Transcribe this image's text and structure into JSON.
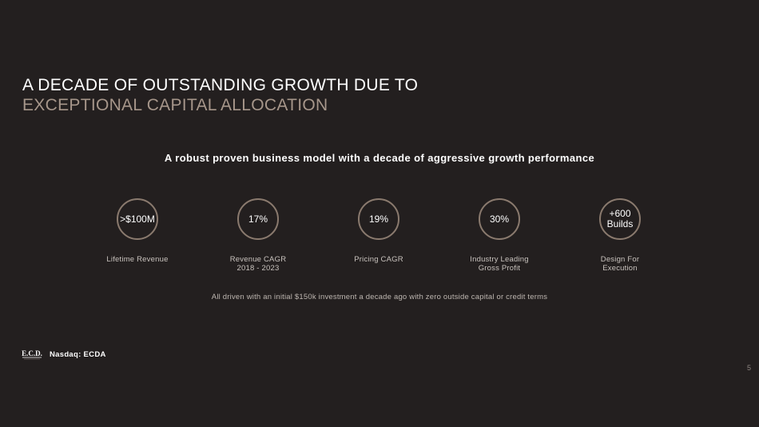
{
  "title": {
    "line1": "A DECADE OF OUTSTANDING GROWTH DUE TO",
    "line2": "EXCEPTIONAL CAPITAL ALLOCATION"
  },
  "subtitle": "A robust proven business model with a decade of aggressive growth performance",
  "stats": [
    {
      "value": ">$100M",
      "label": "Lifetime Revenue"
    },
    {
      "value": "17%",
      "label": "Revenue CAGR\n2018 - 2023"
    },
    {
      "value": "19%",
      "label": "Pricing CAGR"
    },
    {
      "value": "30%",
      "label": "Industry Leading\nGross Profit"
    },
    {
      "value": "+600\nBuilds",
      "label": "Design For\nExecution"
    }
  ],
  "footnote": "All driven with an initial $150k investment a decade ago with zero outside capital or credit terms",
  "footer": {
    "logo_text": "E.C.D.",
    "ticker": "Nasdaq: ECDA"
  },
  "page_number": "5",
  "colors": {
    "background": "#231f1f",
    "accent": "#a6968a",
    "circle_border": "#8a7a6e"
  }
}
